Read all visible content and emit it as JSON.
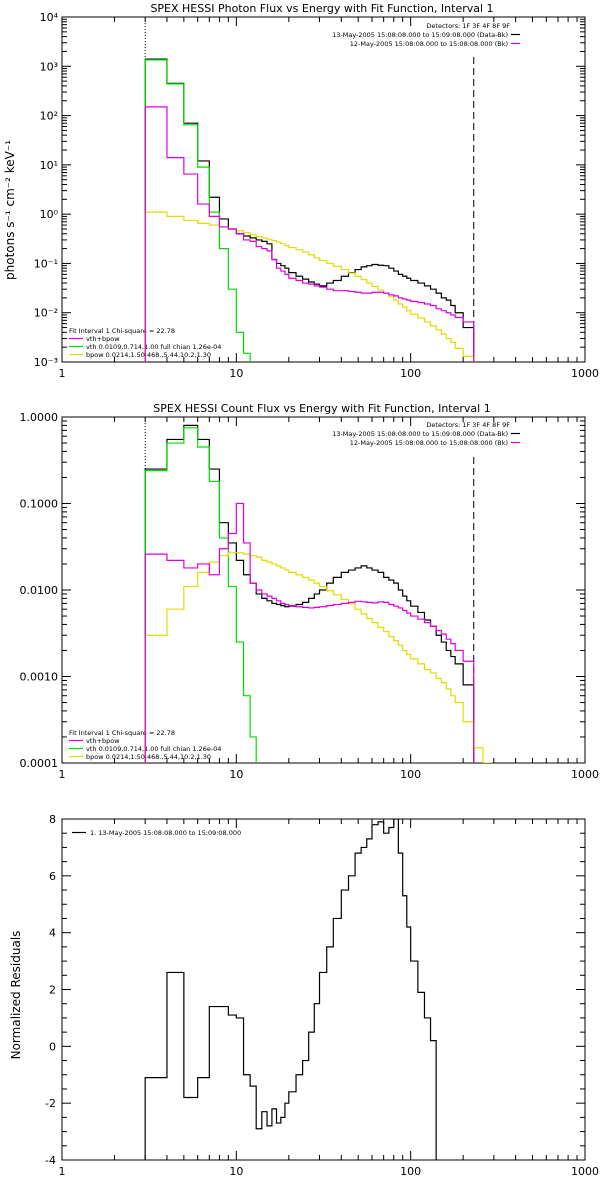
{
  "colors": {
    "data": "#000000",
    "vth": "#00dd00",
    "bpow": "#dddd00",
    "model": "#dd00dd",
    "background": "#dd00dd"
  },
  "chart_data": [
    {
      "type": "line",
      "title": "SPEX HESSI Photon Flux vs Energy with Fit Function, Interval 1",
      "ylabel": "photons s⁻¹ cm⁻² keV⁻¹",
      "xlabel": "",
      "xscale": "log",
      "yscale": "log",
      "xlim": [
        1,
        1000
      ],
      "ylim": [
        0.001,
        10000
      ],
      "x_tick_labels": [
        "1",
        "10",
        "100",
        "1000"
      ],
      "y_tick_labels": [
        "10⁻³",
        "10⁻²",
        "10⁻¹",
        "10⁰",
        "10¹",
        "10²",
        "10³",
        "10⁴"
      ],
      "vlines": [
        3,
        230
      ],
      "top_legend": [
        "Detectors: 1F 3F 4F 8F 9F",
        "13-May-2005 15:08:08.000 to 15:09:08.000 (Data-Bk)",
        "12-May-2005 15:08:08.000 to 15:08:08.000 (Bk)"
      ],
      "fit_legend": {
        "header": "Fit Interval 1   Chi-square = 22.78",
        "lines": [
          "vth+bpow",
          "vth 0.0109,0.714,1.00  full chian 1.26e-04",
          "bpow 0.0214,1.50,468.,5.44,10.2,1.30"
        ]
      },
      "x_edges": [
        3,
        4,
        5,
        6,
        7,
        8,
        9,
        10,
        11,
        12,
        13,
        14,
        15,
        16,
        17,
        18,
        19,
        20,
        22,
        24,
        26,
        28,
        30,
        33,
        36,
        40,
        44,
        48,
        52,
        56,
        60,
        65,
        70,
        75,
        80,
        85,
        90,
        95,
        100,
        110,
        120,
        130,
        140,
        150,
        160,
        170,
        180,
        200,
        230,
        260,
        290
      ],
      "series": [
        {
          "name": "data",
          "values": [
            1400,
            450,
            70,
            12,
            2.2,
            0.8,
            0.5,
            0.4,
            0.36,
            0.33,
            0.3,
            0.28,
            0.25,
            0.12,
            0.1,
            0.09,
            0.08,
            0.065,
            0.055,
            0.048,
            0.042,
            0.038,
            0.035,
            0.04,
            0.045,
            0.055,
            0.065,
            0.075,
            0.085,
            0.09,
            0.095,
            0.092,
            0.09,
            0.08,
            0.07,
            0.06,
            0.055,
            0.05,
            0.045,
            0.04,
            0.035,
            0.03,
            0.025,
            0.02,
            0.018,
            0.014,
            0.01,
            0.005
          ]
        },
        {
          "name": "vth",
          "values": [
            1350,
            440,
            65,
            9,
            1.1,
            0.2,
            0.03,
            0.004,
            0.0015
          ]
        },
        {
          "name": "bpow",
          "values": [
            1.1,
            0.9,
            0.75,
            0.65,
            0.6,
            0.55,
            0.5,
            0.46,
            0.42,
            0.38,
            0.35,
            0.33,
            0.31,
            0.29,
            0.27,
            0.25,
            0.23,
            0.21,
            0.19,
            0.17,
            0.15,
            0.13,
            0.115,
            0.1,
            0.087,
            0.075,
            0.064,
            0.055,
            0.047,
            0.04,
            0.034,
            0.029,
            0.025,
            0.021,
            0.018,
            0.015,
            0.013,
            0.011,
            0.0093,
            0.0078,
            0.0065,
            0.0054,
            0.0045,
            0.0037,
            0.003,
            0.0025,
            0.0019,
            0.0013,
            0.0009,
            0.0006
          ]
        },
        {
          "name": "background",
          "values": [
            150,
            14,
            6.5,
            1.6,
            0.9,
            0.55,
            0.5,
            0.4,
            0.3,
            0.28,
            0.22,
            0.2,
            0.18,
            0.12,
            0.08,
            0.07,
            0.06,
            0.05,
            0.045,
            0.04,
            0.038,
            0.035,
            0.033,
            0.03,
            0.028,
            0.028,
            0.027,
            0.026,
            0.025,
            0.025,
            0.026,
            0.026,
            0.025,
            0.023,
            0.022,
            0.02,
            0.019,
            0.018,
            0.017,
            0.016,
            0.015,
            0.014,
            0.012,
            0.011,
            0.01,
            0.009,
            0.008,
            0.0065
          ]
        }
      ]
    },
    {
      "type": "line",
      "title": "SPEX HESSI Count Flux vs Energy with Fit Function, Interval 1",
      "ylabel": "",
      "xlabel": "",
      "xscale": "log",
      "yscale": "log",
      "xlim": [
        1,
        1000
      ],
      "ylim": [
        0.0001,
        1
      ],
      "x_tick_labels": [
        "1",
        "10",
        "100",
        "1000"
      ],
      "y_tick_labels": [
        "0.0001",
        "0.0010",
        "0.0100",
        "0.1000",
        "1.0000"
      ],
      "vlines": [
        3,
        230
      ],
      "top_legend": [
        "Detectors: 1F 3F 4F 8F 9F",
        "13-May-2005 15:08:08.000 to 15:09:08.000 (Data-Bk)",
        "12-May-2005 15:08:08.000 to 15:08:08.000 (Bk)"
      ],
      "fit_legend": {
        "header": "Fit Interval 1   Chi-square = 22.78",
        "lines": [
          "vth+bpow",
          "vth 0.0109,0.714,1.00  full chian 1.26e-04",
          "bpow 0.0214,1.50,468.,5.44,10.2,1.30"
        ]
      },
      "x_edges": [
        3,
        4,
        5,
        6,
        7,
        8,
        9,
        10,
        11,
        12,
        13,
        14,
        15,
        16,
        17,
        18,
        19,
        20,
        22,
        24,
        26,
        28,
        30,
        33,
        36,
        40,
        44,
        48,
        52,
        56,
        60,
        65,
        70,
        75,
        80,
        85,
        90,
        95,
        100,
        110,
        120,
        130,
        140,
        150,
        160,
        170,
        180,
        200,
        230,
        260,
        290
      ],
      "series": [
        {
          "name": "data",
          "values": [
            0.25,
            0.55,
            0.8,
            0.55,
            0.25,
            0.06,
            0.035,
            0.022,
            0.015,
            0.012,
            0.009,
            0.008,
            0.0075,
            0.007,
            0.0068,
            0.0066,
            0.0064,
            0.0065,
            0.0068,
            0.0072,
            0.008,
            0.009,
            0.01,
            0.012,
            0.014,
            0.016,
            0.017,
            0.018,
            0.019,
            0.018,
            0.017,
            0.016,
            0.014,
            0.013,
            0.012,
            0.01,
            0.0085,
            0.0075,
            0.0065,
            0.0055,
            0.0045,
            0.0038,
            0.003,
            0.0025,
            0.002,
            0.0017,
            0.0014,
            0.0008
          ]
        },
        {
          "name": "vth",
          "values": [
            0.24,
            0.5,
            0.75,
            0.45,
            0.18,
            0.04,
            0.011,
            0.0025,
            0.0006,
            0.0002
          ]
        },
        {
          "name": "bpow",
          "values": [
            0.003,
            0.006,
            0.011,
            0.016,
            0.021,
            0.025,
            0.027,
            0.027,
            0.026,
            0.025,
            0.024,
            0.022,
            0.021,
            0.02,
            0.019,
            0.018,
            0.017,
            0.016,
            0.015,
            0.014,
            0.013,
            0.012,
            0.011,
            0.0098,
            0.0088,
            0.0078,
            0.0069,
            0.006,
            0.0053,
            0.0047,
            0.0042,
            0.0037,
            0.0033,
            0.0029,
            0.0026,
            0.0023,
            0.002,
            0.0018,
            0.0016,
            0.0014,
            0.0012,
            0.0011,
            0.00095,
            0.00085,
            0.00072,
            0.0006,
            0.0005,
            0.0003,
            0.00015,
            0.0001
          ]
        },
        {
          "name": "background",
          "values": [
            0.026,
            0.022,
            0.018,
            0.02,
            0.015,
            0.03,
            0.045,
            0.1,
            0.035,
            0.012,
            0.01,
            0.009,
            0.0085,
            0.008,
            0.0075,
            0.007,
            0.0068,
            0.0066,
            0.0064,
            0.0063,
            0.0062,
            0.0063,
            0.0064,
            0.0066,
            0.0068,
            0.007,
            0.0072,
            0.0074,
            0.0073,
            0.0072,
            0.0071,
            0.0073,
            0.0072,
            0.0068,
            0.0065,
            0.0062,
            0.0058,
            0.0054,
            0.005,
            0.0046,
            0.0042,
            0.0038,
            0.0034,
            0.0031,
            0.0027,
            0.0024,
            0.002,
            0.0015
          ]
        }
      ]
    },
    {
      "type": "line",
      "title": "",
      "ylabel": "Normalized Residuals",
      "xlabel": "",
      "xscale": "log",
      "yscale": "linear",
      "xlim": [
        1,
        1000
      ],
      "ylim": [
        -4,
        8
      ],
      "x_tick_labels": [
        "1",
        "10",
        "100",
        "1000"
      ],
      "y_tick_labels": [
        "-4",
        "-2",
        "0",
        "2",
        "4",
        "6",
        "8"
      ],
      "legend": "1. 13-May-2005 15:08:08.000 to 15:09:08.000",
      "x_edges": [
        3,
        4,
        5,
        6,
        7,
        8,
        9,
        10,
        11,
        12,
        13,
        14,
        15,
        16,
        17,
        18,
        19,
        20,
        22,
        24,
        26,
        28,
        30,
        33,
        36,
        40,
        44,
        48,
        52,
        56,
        60,
        65,
        70,
        75,
        80,
        85,
        90,
        95,
        100,
        110,
        120,
        130,
        140,
        150,
        160,
        170,
        180,
        200,
        230
      ],
      "series": [
        {
          "name": "residuals",
          "values": [
            -1.1,
            2.6,
            -1.8,
            -1.1,
            1.4,
            1.4,
            1.1,
            1.0,
            -1.0,
            -1.4,
            -2.9,
            -2.3,
            -2.8,
            -2.2,
            -2.7,
            -2.5,
            -2.0,
            -1.6,
            -1.0,
            -0.5,
            0.5,
            1.5,
            2.6,
            3.5,
            4.5,
            5.5,
            6.0,
            6.8,
            7.0,
            7.3,
            7.8,
            7.9,
            7.5,
            7.7,
            8.0,
            6.8,
            5.3,
            4.2,
            3.0,
            1.9,
            1.0,
            0.2
          ]
        }
      ]
    }
  ]
}
